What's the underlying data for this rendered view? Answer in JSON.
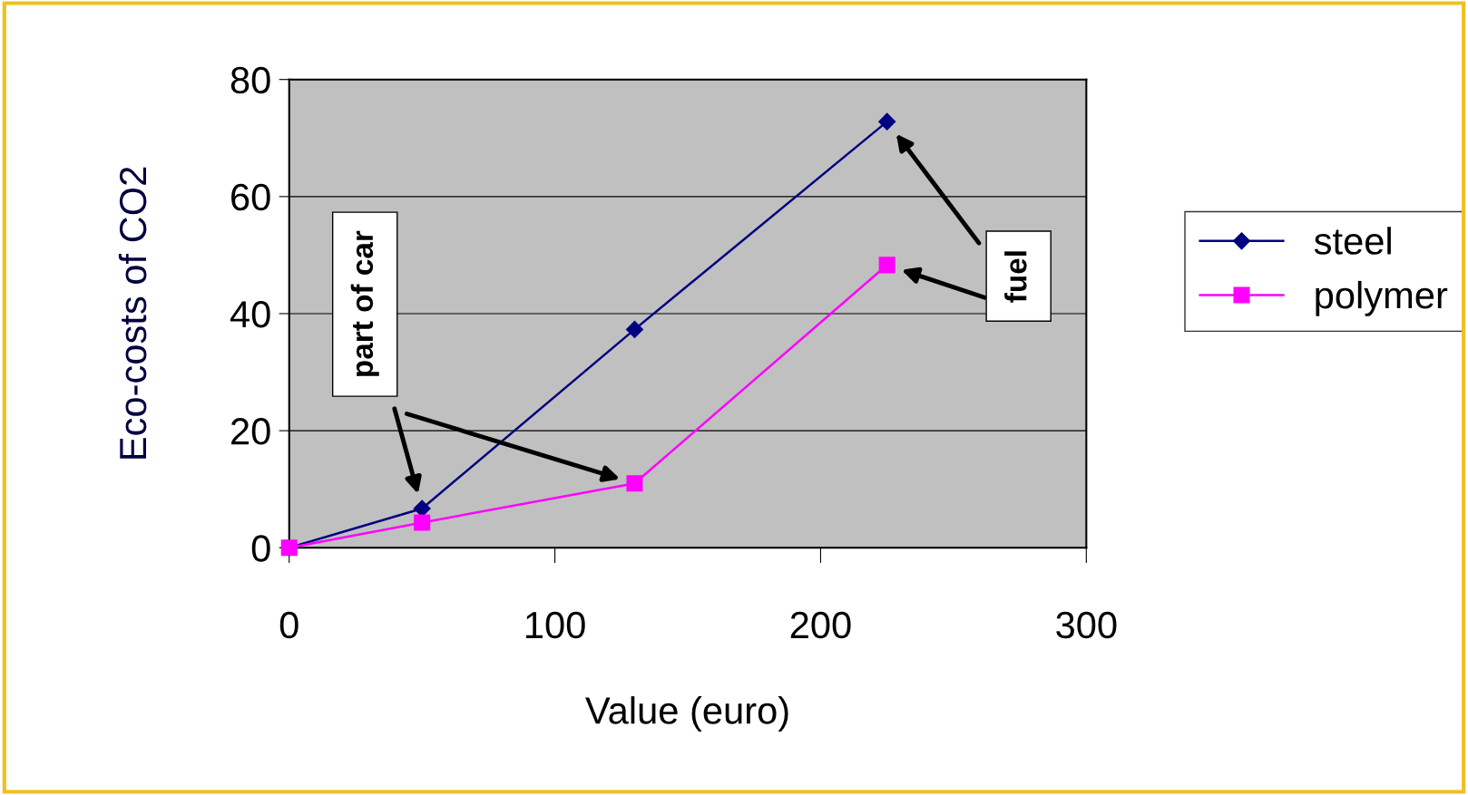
{
  "chart_data": {
    "type": "line",
    "xlabel": "Value (euro)",
    "ylabel": "Eco-costs of CO2",
    "series": [
      {
        "name": "steel",
        "color": "#000080",
        "marker": "diamond",
        "x": [
          0,
          50,
          130,
          225
        ],
        "values": [
          0,
          6.7,
          37.3,
          72.8
        ]
      },
      {
        "name": "polymer",
        "color": "#ff00ff",
        "marker": "square",
        "x": [
          0,
          50,
          130,
          225
        ],
        "values": [
          0,
          4.3,
          11,
          48.3
        ]
      }
    ],
    "xlim": [
      0,
      300
    ],
    "xticks": [
      0,
      100,
      200,
      300
    ],
    "ylim": [
      0,
      80
    ],
    "yticks": [
      0,
      20,
      40,
      60,
      80
    ],
    "grid": "y",
    "legend": "right",
    "annotations": [
      "part of car",
      "fuel"
    ]
  }
}
